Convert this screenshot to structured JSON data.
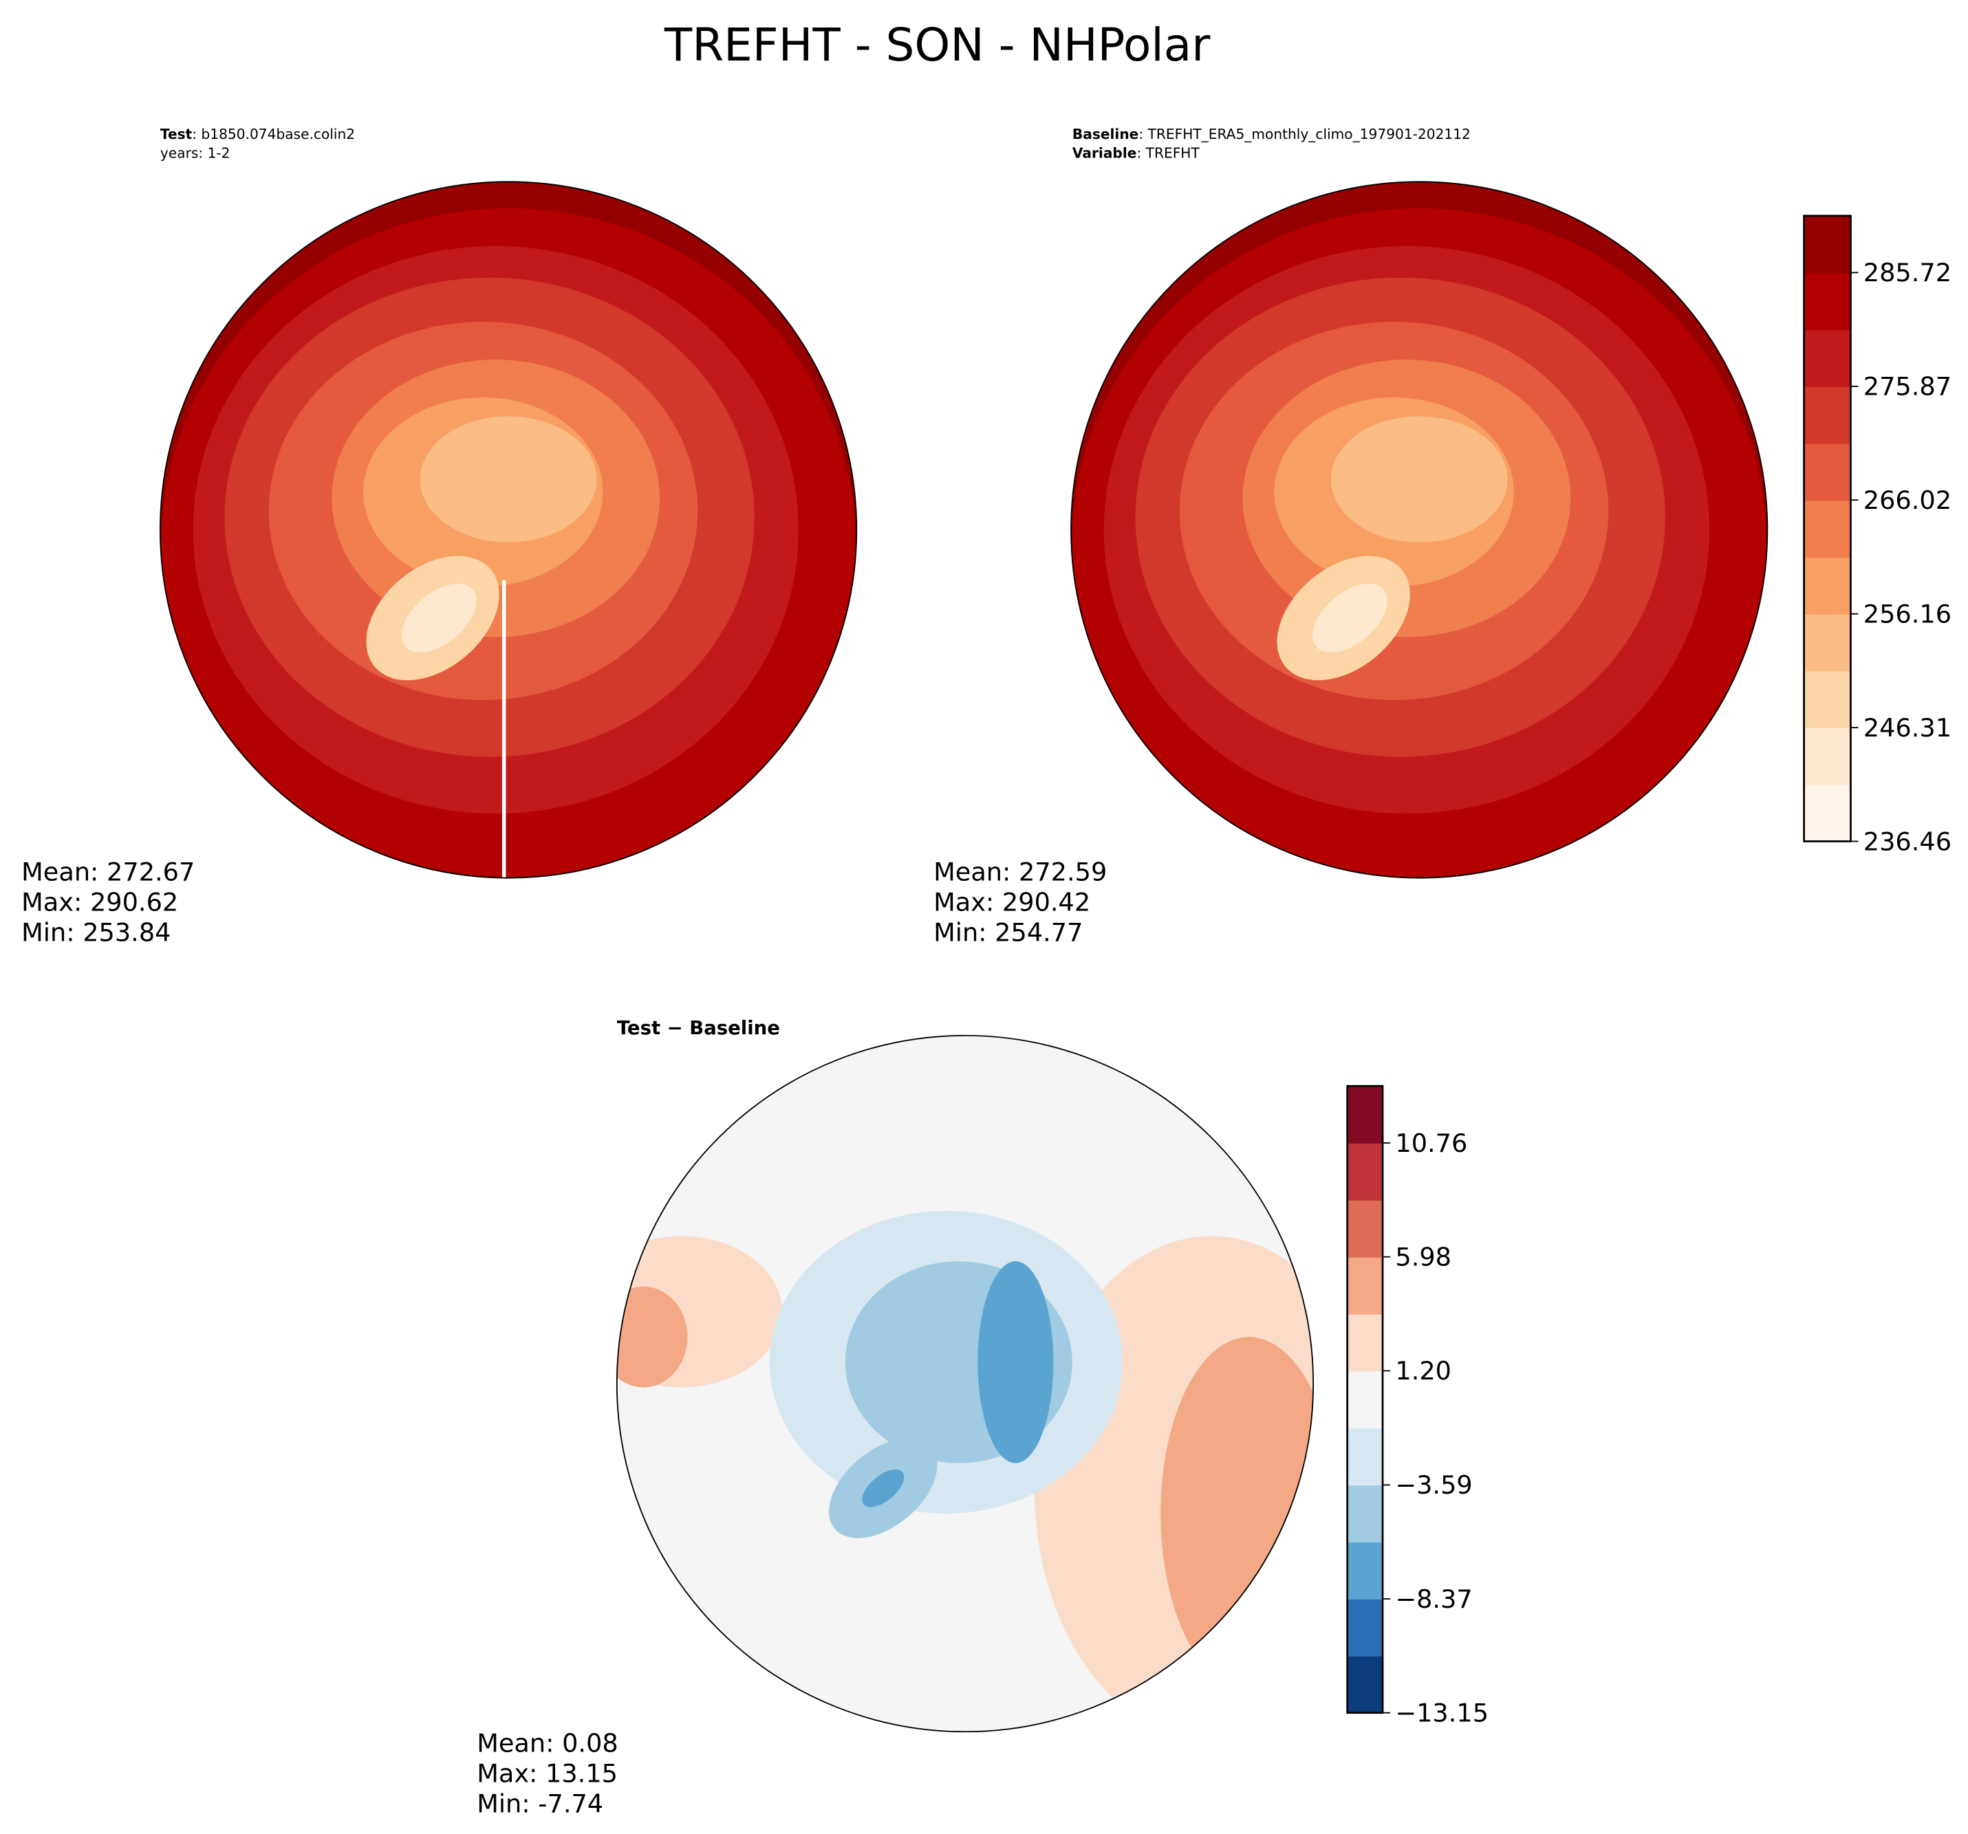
{
  "title": "TREFHT - SON - NHPolar",
  "chart_data": [
    {
      "type": "contour-map",
      "header": [
        {
          "label": "Test",
          "text": ": b1850.074base.colin2"
        },
        {
          "text": "years: 1-2"
        }
      ],
      "stats": [
        "Mean: 272.67",
        "Max: 290.62",
        "Min: 253.84"
      ]
    },
    {
      "type": "contour-map",
      "header": [
        {
          "label": "Baseline",
          "text": ": TREFHT_ERA5_monthly_climo_197901-202112"
        },
        {
          "label": "Variable",
          "text": ": TREFHT"
        }
      ],
      "stats": [
        "Mean: 272.59",
        "Max: 290.42",
        "Min: 254.77"
      ],
      "colorbar": {
        "lim": [
          236.46,
          290.64
        ],
        "ticks": [
          236.46,
          246.31,
          256.16,
          266.02,
          275.87,
          285.72
        ],
        "colors": [
          "#fff5eb",
          "#fee8d0",
          "#fdd6a8",
          "#fbbd85",
          "#f89f64",
          "#f07e4e",
          "#e35a3e",
          "#d2392a",
          "#c21a1a",
          "#b30000",
          "#950000"
        ]
      }
    },
    {
      "type": "contour-map",
      "title": "Test − Baseline",
      "stats": [
        "Mean:  0.08",
        "Max: 13.15",
        "Min: -7.74"
      ],
      "colorbar": {
        "lim": [
          -13.15,
          13.15
        ],
        "ticks": [
          {
            "value": -13.15,
            "label": "−13.15"
          },
          {
            "value": -8.37,
            "label": "−8.37"
          },
          {
            "value": -3.59,
            "label": "−3.59"
          },
          {
            "value": 1.2,
            "label": "1.20"
          },
          5.98,
          10.76
        ],
        "colors": [
          "#0b3d7c",
          "#2a6fb5",
          "#5ba3d0",
          "#a0cbe2",
          "#d6e7f2",
          "#f5f5f5",
          "#fbdcc9",
          "#f4a886",
          "#dd6b56",
          "#c0343a",
          "#820a25"
        ]
      }
    }
  ]
}
